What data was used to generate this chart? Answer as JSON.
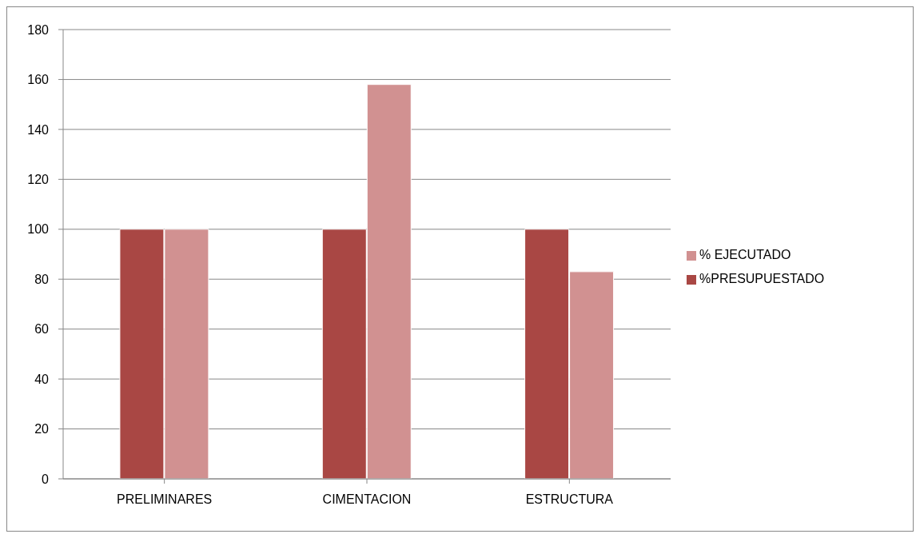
{
  "chart_data": {
    "type": "bar",
    "categories": [
      "PRELIMINARES",
      "CIMENTACION",
      "ESTRUCTURA"
    ],
    "series": [
      {
        "name": "%PRESUPUESTADO",
        "color": "#a94744",
        "values": [
          100,
          100,
          100
        ]
      },
      {
        "name": "% EJECUTADO",
        "color": "#d19191",
        "values": [
          100,
          158,
          83
        ]
      }
    ],
    "ylim": [
      0,
      180
    ],
    "yticks": [
      0,
      20,
      40,
      60,
      80,
      100,
      120,
      140,
      160,
      180
    ],
    "grid": "y",
    "legend": "right"
  }
}
